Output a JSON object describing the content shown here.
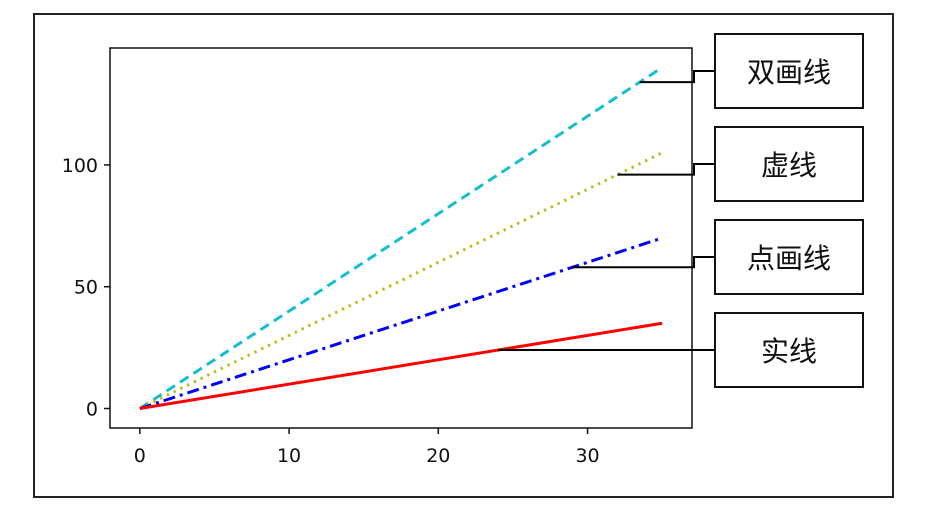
{
  "chart_data": {
    "type": "line",
    "x": [
      0,
      35
    ],
    "xlim": [
      -2,
      37
    ],
    "ylim": [
      -8,
      148
    ],
    "xticks": [
      0,
      10,
      20,
      30
    ],
    "yticks": [
      0,
      50,
      100
    ],
    "grid": false,
    "series": [
      {
        "name": "双画线",
        "style": "dashed",
        "color": "#17becf",
        "values": [
          0,
          140
        ]
      },
      {
        "name": "虚线",
        "style": "dotted",
        "color": "#bcbd22",
        "values": [
          0,
          105
        ]
      },
      {
        "name": "点画线",
        "style": "dashdot",
        "color": "#0000ff",
        "values": [
          0,
          70
        ]
      },
      {
        "name": "实线",
        "style": "solid",
        "color": "#ff0000",
        "values": [
          0,
          35
        ]
      }
    ],
    "annotations": [
      {
        "text": "双画线",
        "series": "双画线",
        "point_x": 33.5
      },
      {
        "text": "虚线",
        "series": "虚线",
        "point_x": 32
      },
      {
        "text": "点画线",
        "series": "点画线",
        "point_x": 29
      },
      {
        "text": "实线",
        "series": "实线",
        "point_x": 24
      }
    ]
  }
}
